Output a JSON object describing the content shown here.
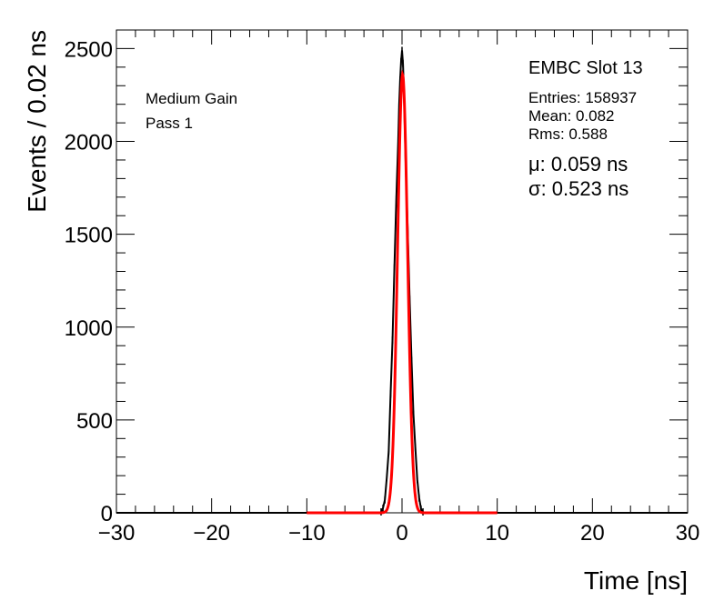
{
  "chart_data": {
    "type": "line",
    "title": "",
    "xlabel": "Time [ns]",
    "ylabel": "Events / 0.02 ns",
    "xlim": [
      -30,
      30
    ],
    "ylim": [
      0,
      2600
    ],
    "x_ticks": [
      -30,
      -20,
      -10,
      0,
      10,
      20,
      30
    ],
    "x_tick_labels": [
      "−30",
      "−20",
      "−10",
      "0",
      "10",
      "20",
      "30"
    ],
    "y_ticks": [
      0,
      500,
      1000,
      1500,
      2000,
      2500
    ],
    "y_tick_labels": [
      "0",
      "500",
      "1000",
      "1500",
      "2000",
      "2500"
    ],
    "grid": false,
    "series": [
      {
        "kind": "histogram",
        "color": "#000000",
        "x": [
          -2.2,
          -2.0,
          -1.8,
          -1.6,
          -1.4,
          -1.2,
          -1.0,
          -0.8,
          -0.6,
          -0.4,
          -0.3,
          -0.2,
          -0.1,
          0.0,
          0.1,
          0.2,
          0.3,
          0.4,
          0.6,
          0.8,
          1.0,
          1.2,
          1.4,
          1.6,
          1.8,
          2.0,
          2.2
        ],
        "y": [
          5,
          25,
          70,
          190,
          330,
          640,
          930,
          1320,
          1690,
          2000,
          2200,
          2330,
          2430,
          2490,
          2420,
          2270,
          2060,
          1850,
          1520,
          1150,
          820,
          530,
          350,
          180,
          80,
          20,
          5
        ]
      },
      {
        "kind": "fit",
        "color": "#ff0000",
        "function": "gaussian",
        "range": [
          -10,
          10
        ],
        "amplitude": 2360,
        "mean": 0.059,
        "sigma": 0.523
      }
    ],
    "annotations": {
      "left": [
        "Medium Gain",
        "Pass 1"
      ],
      "slot": "EMBC Slot 13",
      "stats": [
        "Entries: 158937",
        "Mean: 0.082",
        "Rms: 0.588"
      ],
      "fit": [
        "μ: 0.059 ns",
        "σ: 0.523 ns"
      ]
    }
  }
}
